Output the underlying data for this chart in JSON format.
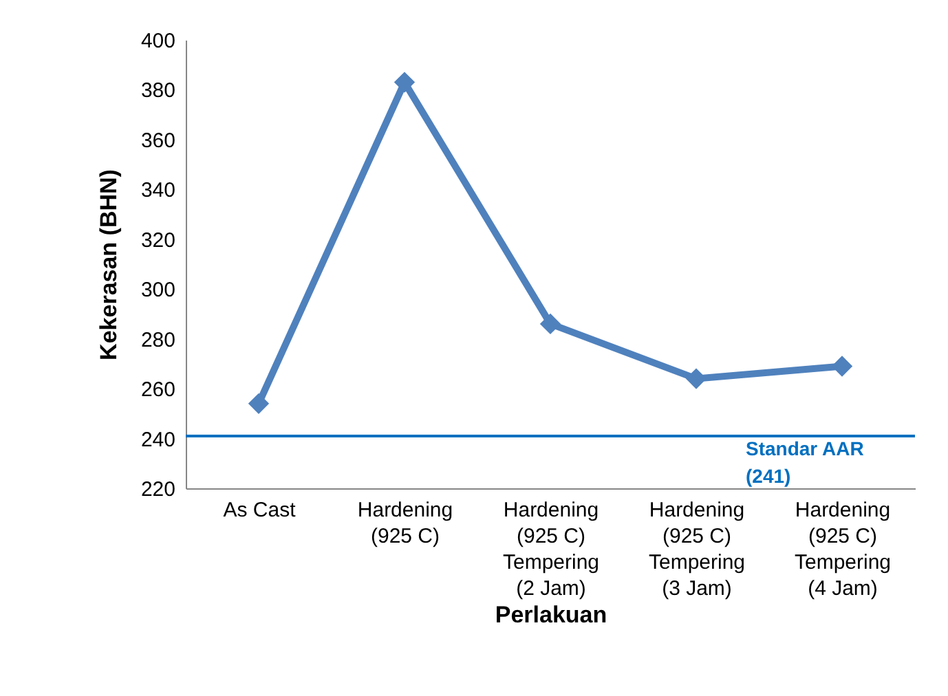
{
  "chart_data": {
    "type": "line",
    "xlabel": "Perlakuan",
    "ylabel": "Kekerasan (BHN)",
    "categories": [
      "As Cast",
      "Hardening\n(925 C)",
      "Hardening\n(925 C)\nTempering\n(2 Jam)",
      "Hardening\n(925 C)\nTempering\n(3 Jam)",
      "Hardening\n(925 C)\nTempering\n(4 Jam)"
    ],
    "series": [
      {
        "color": "#4f81bd",
        "values": [
          254,
          383,
          286,
          264,
          269
        ]
      }
    ],
    "ylim": [
      220,
      400
    ],
    "yticks": [
      220,
      240,
      260,
      280,
      300,
      320,
      340,
      360,
      380,
      400
    ],
    "ref_lines": [
      {
        "axis": "y",
        "value": 241,
        "label": "Standar AAR\n(241)",
        "color": "#0070c0"
      }
    ],
    "marker": "diamond",
    "line_style": "solid",
    "grid": false
  }
}
